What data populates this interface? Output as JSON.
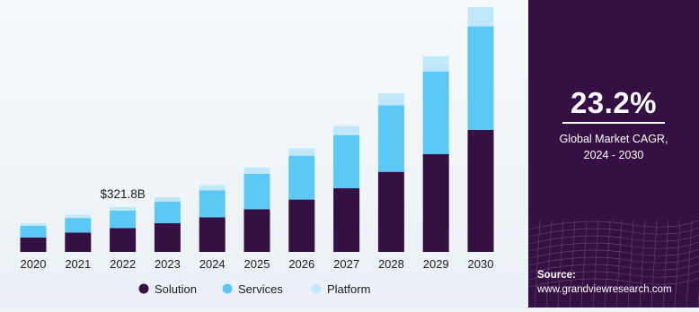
{
  "chart_data": {
    "type": "bar",
    "stacked": true,
    "title": "",
    "xlabel": "",
    "ylabel": "",
    "categories": [
      "2020",
      "2021",
      "2022",
      "2023",
      "2024",
      "2025",
      "2026",
      "2027",
      "2028",
      "2029",
      "2030"
    ],
    "series": [
      {
        "name": "Solution",
        "color": "#351042",
        "values": [
          45,
          60,
          74,
          89,
          107,
          132,
          162,
          197,
          248,
          303,
          378
        ]
      },
      {
        "name": "Services",
        "color": "#5bc8f5",
        "values": [
          36,
          45,
          54,
          67,
          84,
          110,
          136,
          165,
          206,
          256,
          320
        ]
      },
      {
        "name": "Platform",
        "color": "#bfe8fb",
        "values": [
          8,
          10,
          11,
          13,
          16,
          19,
          23,
          28,
          37,
          47,
          60
        ]
      }
    ],
    "ylim": [
      0,
      780
    ],
    "grid": false,
    "legend_position": "bottom",
    "annotation": {
      "category": "2022",
      "text": "$321.8B"
    }
  },
  "sidebar": {
    "cagr_value": "23.2%",
    "cagr_label_line1": "Global Market CAGR,",
    "cagr_label_line2": "2024 - 2030",
    "source_title": "Source:",
    "source_url": "www.grandviewresearch.com"
  }
}
